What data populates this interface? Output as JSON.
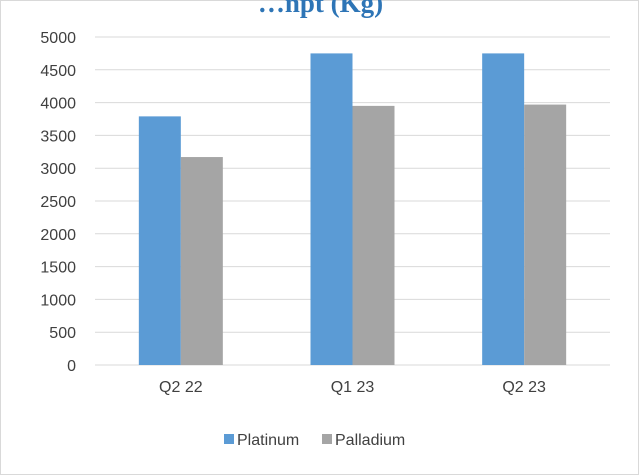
{
  "chart_data": {
    "type": "bar",
    "title": "…npt (Kg)",
    "categories": [
      "Q2 22",
      "Q1 23",
      "Q2 23"
    ],
    "series": [
      {
        "name": "Platinum",
        "color": "#5b9bd5",
        "values": [
          3790,
          4750,
          4750
        ]
      },
      {
        "name": "Palladium",
        "color": "#a5a5a5",
        "values": [
          3170,
          3950,
          3970
        ]
      }
    ],
    "ylim": [
      0,
      5000
    ],
    "yticks": [
      0,
      500,
      1000,
      1500,
      2000,
      2500,
      3000,
      3500,
      4000,
      4500,
      5000
    ],
    "grid": true,
    "legend_position": "bottom"
  }
}
